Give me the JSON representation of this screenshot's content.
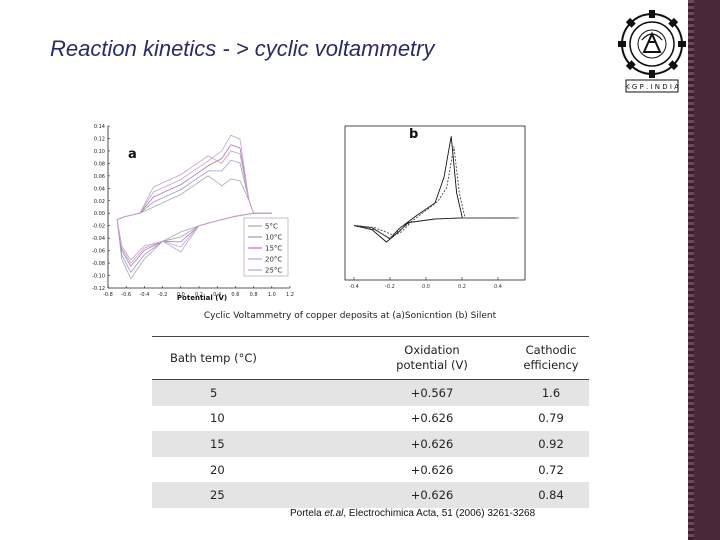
{
  "slide": {
    "title": "Reaction kinetics - > cyclic voltammetry",
    "caption": "Cyclic Voltammetry of copper deposits at (a)Sonicntion (b) Silent",
    "citation_prefix": "Portela ",
    "citation_etal": "et.al",
    "citation_suffix": ", Electrochimica Acta, 51 (2006) 3261-3268",
    "logo_banner": "K G P . I N D I A"
  },
  "colors": {
    "title": "#2a2a6a",
    "sidebar": "#4a2a3a",
    "table_shade": "#e4e4e4"
  },
  "chart_data": [
    {
      "type": "line",
      "panel_label": "a",
      "xlabel": "Potential (V)",
      "ylabel": "",
      "xlim": [
        -0.8,
        1.2
      ],
      "ylim": [
        -0.12,
        0.14
      ],
      "x_ticks": [
        "-0.8",
        "-0.6",
        "-0.4",
        "-0.2",
        "0.0",
        "0.2",
        "0.4",
        "0.6",
        "0.8",
        "1.0",
        "1.2"
      ],
      "y_ticks": [
        "0.14",
        "0.12",
        "0.10",
        "0.08",
        "0.06",
        "0.04",
        "0.02",
        "0.00",
        "-0.02",
        "-0.04",
        "-0.06",
        "-0.08",
        "-0.10",
        "-0.12"
      ],
      "legend_position": "bottom-right",
      "series": [
        {
          "name": "5°C",
          "color": "#a8a8a8",
          "anodic_peak": 0.055,
          "cathodic_min": -0.105
        },
        {
          "name": "10°C",
          "color": "#9a9ac8",
          "anodic_peak": 0.085,
          "cathodic_min": -0.095
        },
        {
          "name": "15°C",
          "color": "#c070c0",
          "anodic_peak": 0.11,
          "cathodic_min": -0.085
        },
        {
          "name": "20°C",
          "color": "#b8a8d8",
          "anodic_peak": 0.125,
          "cathodic_min": -0.08
        },
        {
          "name": "25°C",
          "color": "#c8a0c0",
          "anodic_peak": 0.1,
          "cathodic_min": -0.075
        }
      ]
    },
    {
      "type": "line",
      "panel_label": "b",
      "xlabel": "",
      "ylabel": "",
      "xlim": [
        -0.45,
        0.55
      ],
      "ylim": [
        -6,
        9
      ],
      "x_ticks": [
        "-0.4",
        "-0.2",
        "0.0",
        "0.2",
        "0.4"
      ],
      "series": [
        {
          "name": "",
          "color": "#111111",
          "anodic_peak": 8.0,
          "cathodic_min": -2.0
        },
        {
          "name": "",
          "color": "#444444",
          "anodic_peak": 7.0,
          "cathodic_min": -1.6
        }
      ]
    }
  ],
  "table": {
    "headers": [
      "Bath temp (°C)",
      "Oxidation potential (V)",
      "Cathodic efficiency"
    ],
    "header_lines": [
      [
        "Bath temp (°C)"
      ],
      [
        "Oxidation",
        "potential (V)"
      ],
      [
        "Cathodic",
        "efficiency"
      ]
    ],
    "rows": [
      [
        "5",
        "+0.567",
        "1.6"
      ],
      [
        "10",
        "+0.626",
        "0.79"
      ],
      [
        "15",
        "+0.626",
        "0.92"
      ],
      [
        "20",
        "+0.626",
        "0.72"
      ],
      [
        "25",
        "+0.626",
        "0.84"
      ]
    ]
  }
}
